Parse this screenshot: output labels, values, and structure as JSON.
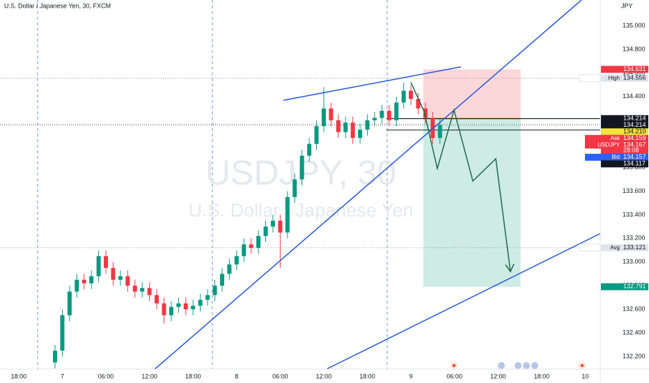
{
  "chart_data": {
    "type": "candlestick",
    "title": "U.S. Dollar / Japanese Yen, 30, FXCM",
    "watermark": "USDJPY, 30",
    "watermark_subtitle": "U.S. Dollar / Japanese Yen",
    "currency": "JPY",
    "up_color": "#089981",
    "down_color": "#f23645",
    "x": [
      23,
      24,
      25,
      26,
      27,
      28,
      29,
      30,
      31,
      32,
      33,
      34,
      35,
      36,
      37,
      38,
      39,
      40,
      41,
      42,
      43,
      44,
      45,
      46,
      47,
      48,
      49,
      50,
      51,
      52,
      53,
      54,
      55,
      56,
      57,
      58,
      59,
      60,
      61,
      62,
      63,
      64,
      65,
      66,
      67,
      68,
      69,
      70,
      71,
      72,
      73,
      74,
      75,
      76
    ],
    "open": [
      132.15,
      132.25,
      132.55,
      132.75,
      132.85,
      132.82,
      132.88,
      133.05,
      132.95,
      132.85,
      132.88,
      132.8,
      132.75,
      132.78,
      132.72,
      132.65,
      132.55,
      132.62,
      132.65,
      132.6,
      132.63,
      132.68,
      132.72,
      132.8,
      132.9,
      132.98,
      133.05,
      133.15,
      133.12,
      133.22,
      133.3,
      133.35,
      133.25,
      133.55,
      133.7,
      133.9,
      134.0,
      134.15,
      134.3,
      134.2,
      134.1,
      134.18,
      134.05,
      134.12,
      134.2,
      134.22,
      134.28,
      134.2,
      134.35,
      134.45,
      134.38,
      134.3,
      134.22,
      134.05
    ],
    "high": [
      132.3,
      132.6,
      132.8,
      132.9,
      132.9,
      132.93,
      133.1,
      133.1,
      133.0,
      132.93,
      132.93,
      132.85,
      132.83,
      132.83,
      132.77,
      132.7,
      132.67,
      132.7,
      132.7,
      132.68,
      132.73,
      132.77,
      132.85,
      132.95,
      133.03,
      133.1,
      133.2,
      133.2,
      133.27,
      133.35,
      133.4,
      133.4,
      133.6,
      133.75,
      133.95,
      134.05,
      134.2,
      134.48,
      134.35,
      134.25,
      134.23,
      134.23,
      134.17,
      134.25,
      134.27,
      134.33,
      134.33,
      134.4,
      134.52,
      134.5,
      134.43,
      134.35,
      134.27,
      134.21
    ],
    "low": [
      132.1,
      132.2,
      132.5,
      132.7,
      132.77,
      132.77,
      132.83,
      132.9,
      132.8,
      132.8,
      132.75,
      132.7,
      132.7,
      132.67,
      132.6,
      132.48,
      132.5,
      132.57,
      132.55,
      132.55,
      132.58,
      132.63,
      132.67,
      132.75,
      132.85,
      132.93,
      133.0,
      133.07,
      133.07,
      133.17,
      133.25,
      132.95,
      133.2,
      133.5,
      133.65,
      133.85,
      133.95,
      134.1,
      134.15,
      134.05,
      134.05,
      134.0,
      134.0,
      134.07,
      134.15,
      134.17,
      134.15,
      134.15,
      134.3,
      134.33,
      134.25,
      134.17,
      134.0,
      134.0
    ],
    "close": [
      132.25,
      132.55,
      132.75,
      132.85,
      132.82,
      132.88,
      133.05,
      132.95,
      132.85,
      132.88,
      132.8,
      132.75,
      132.78,
      132.72,
      132.65,
      132.55,
      132.62,
      132.65,
      132.6,
      132.63,
      132.68,
      132.72,
      132.8,
      132.9,
      132.98,
      133.05,
      133.15,
      133.12,
      133.22,
      133.3,
      133.35,
      133.25,
      133.55,
      133.7,
      133.9,
      134.0,
      134.15,
      134.3,
      134.2,
      134.1,
      134.18,
      134.05,
      134.12,
      134.2,
      134.22,
      134.28,
      134.2,
      134.35,
      134.45,
      134.38,
      134.3,
      134.22,
      134.05,
      134.16
    ],
    "xlim": [
      15.42,
      98.07
    ],
    "ylim": [
      132.094,
      135.218
    ],
    "xticks": [
      {
        "value": 18,
        "label": "18:00"
      },
      {
        "value": 24,
        "label": "7"
      },
      {
        "value": 30,
        "label": "06:00"
      },
      {
        "value": 36,
        "label": "12:00"
      },
      {
        "value": 42,
        "label": "18:00"
      },
      {
        "value": 48,
        "label": "8"
      },
      {
        "value": 54,
        "label": "06:00"
      },
      {
        "value": 60,
        "label": "12:00"
      },
      {
        "value": 66,
        "label": "18:00"
      },
      {
        "value": 72,
        "label": "9"
      },
      {
        "value": 78,
        "label": "06:00"
      },
      {
        "value": 84,
        "label": "12:00"
      },
      {
        "value": 90,
        "label": "18:00"
      },
      {
        "value": 96,
        "label": "10"
      }
    ],
    "yticks": [
      {
        "value": 132.2,
        "label": "132.200"
      },
      {
        "value": 132.4,
        "label": "132.400"
      },
      {
        "value": 132.6,
        "label": "132.600"
      },
      {
        "value": 132.8,
        "label": "132.800"
      },
      {
        "value": 133.0,
        "label": "133.000"
      },
      {
        "value": 133.2,
        "label": "133.200"
      },
      {
        "value": 133.4,
        "label": "133.400"
      },
      {
        "value": 133.6,
        "label": "133.600"
      },
      {
        "value": 133.8,
        "label": "133.800"
      },
      {
        "value": 134.0,
        "label": "134.000"
      },
      {
        "value": 134.2,
        "label": "134.200"
      },
      {
        "value": 134.4,
        "label": "134.400"
      },
      {
        "value": 134.6,
        "label": "134.600"
      },
      {
        "value": 134.8,
        "label": "134.800"
      },
      {
        "value": 135.0,
        "label": "135.000"
      }
    ],
    "position": {
      "start": 73.7,
      "end": 87.1,
      "entry": 134.214,
      "stop": 134.631,
      "target": 132.791
    },
    "price_labels": [
      {
        "value": 134.631,
        "label": "134.631",
        "color": "#f23645"
      },
      {
        "tag": "High",
        "value": 134.556,
        "label": "134.556",
        "color": "#e0e3eb"
      },
      {
        "value": 134.214,
        "label": "134.214",
        "color": "#131722"
      },
      {
        "value": 134.214,
        "label": "134.214",
        "color": "#131722"
      },
      {
        "value": 134.21,
        "label": "134.210",
        "color": "#f5e33a"
      },
      {
        "tag": "Ask",
        "value": 134.159,
        "label": "134.159",
        "color": "#f23645"
      },
      {
        "tag": "USDJPY",
        "value": 134.167,
        "label": "134.167",
        "color": "#f23645",
        "timer": "28:08"
      },
      {
        "tag": "Bid",
        "value": 134.157,
        "label": "134.157",
        "color": "#2962ff"
      },
      {
        "value": 134.117,
        "label": "134.117",
        "color": "#131722"
      },
      {
        "tag": "Avg",
        "value": 133.121,
        "label": "133.121",
        "color": "#e0e3eb"
      },
      {
        "value": 132.791,
        "label": "132.791",
        "color": "#089981"
      }
    ]
  }
}
